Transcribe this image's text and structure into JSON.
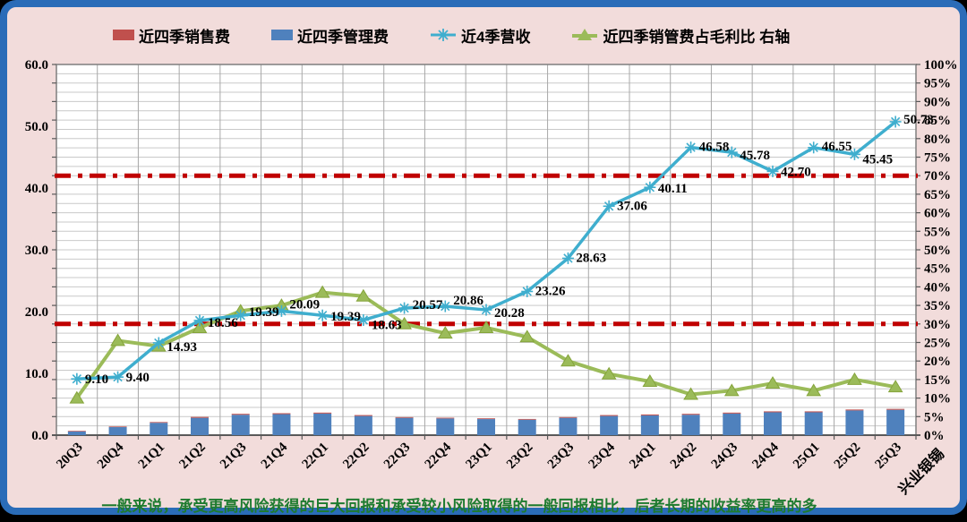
{
  "legend": {
    "items": [
      {
        "label": "近四季销售费",
        "swatch": "red-bar-swatch",
        "color": "#C0504D"
      },
      {
        "label": "近四季管理费",
        "swatch": "blue-bar-swatch",
        "color": "#4F81BD"
      },
      {
        "label": "近4季营收",
        "swatch": "cyan-line-swatch",
        "color": "#3FAECE"
      },
      {
        "label": "近四季销管费占毛利比 右轴",
        "swatch": "green-line-swatch",
        "color": "#9BBB59"
      }
    ]
  },
  "footnote": "一般来说，承受更高风险获得的巨大回报和承受较小风险取得的一般回报相比，后者长期的收益率更高的多",
  "x_axis_extra_label": "兴业银锡",
  "colors": {
    "frame_border": "#2A6CB8",
    "background": "#F2DCDB",
    "plot_background": "#FFFFFF",
    "gridline_h": "#C9C9C9",
    "gridline_v": "#A8A8A8",
    "axis_line": "#7F7F7F",
    "reference_line": "#C00000",
    "bar_sales": "#C0504D",
    "bar_mgmt": "#4F81BD",
    "line_revenue": "#3FAECE",
    "line_ratio": "#9BBB59",
    "label_text": "#000000",
    "footnote_text": "#1E7B2F"
  },
  "chart_data": {
    "type": "bar",
    "subtype": "combo-stacked-bar-two-lines",
    "categories": [
      "20Q3",
      "20Q4",
      "21Q1",
      "21Q2",
      "21Q3",
      "21Q4",
      "22Q1",
      "22Q2",
      "22Q3",
      "22Q4",
      "23Q1",
      "23Q2",
      "23Q3",
      "23Q4",
      "24Q1",
      "24Q2",
      "24Q3",
      "24Q4",
      "25Q1",
      "25Q2",
      "25Q3"
    ],
    "series": [
      {
        "name": "近四季销售费",
        "type": "bar",
        "stack": "fees",
        "axis": "left",
        "color": "#C0504D",
        "values": [
          0.1,
          0.1,
          0.12,
          0.15,
          0.15,
          0.15,
          0.15,
          0.15,
          0.12,
          0.12,
          0.12,
          0.12,
          0.12,
          0.15,
          0.15,
          0.15,
          0.15,
          0.15,
          0.15,
          0.15,
          0.15
        ]
      },
      {
        "name": "近四季管理费",
        "type": "bar",
        "stack": "fees",
        "axis": "left",
        "color": "#4F81BD",
        "values": [
          0.6,
          1.3,
          2.0,
          2.8,
          3.3,
          3.4,
          3.5,
          3.1,
          2.8,
          2.7,
          2.6,
          2.5,
          2.8,
          3.1,
          3.2,
          3.3,
          3.5,
          3.7,
          3.7,
          4.0,
          4.1
        ]
      },
      {
        "name": "近4季营收",
        "type": "line",
        "axis": "left",
        "color": "#3FAECE",
        "marker": "asterisk",
        "values": [
          9.1,
          9.4,
          14.93,
          18.56,
          19.39,
          20.09,
          19.39,
          18.63,
          20.57,
          20.86,
          20.28,
          23.26,
          28.63,
          37.06,
          40.11,
          46.58,
          45.78,
          42.7,
          46.55,
          45.45,
          50.73
        ],
        "data_labels": [
          "9.10",
          "9.40",
          "14.93",
          "18.56",
          "19.39",
          "20.09",
          "19.39",
          "18.63",
          "20.57",
          "20.86",
          "20.28",
          "23.26",
          "28.63",
          "37.06",
          "40.11",
          "46.58",
          "45.78",
          "42.70",
          "46.55",
          "45.45",
          "50.73"
        ],
        "label_dy": [
          5,
          5,
          9,
          7,
          1,
          -3,
          6,
          10,
          1,
          -2,
          8,
          4,
          4,
          4,
          6,
          4,
          8,
          5,
          3,
          10,
          2
        ]
      },
      {
        "name": "近四季销管费占毛利比 右轴",
        "type": "line",
        "axis": "right",
        "color": "#9BBB59",
        "marker": "triangle",
        "values": [
          10,
          25.5,
          24,
          29,
          33.5,
          35,
          38.5,
          37.5,
          30,
          27.5,
          29,
          26.5,
          20,
          16.5,
          14.5,
          11,
          12,
          14,
          12,
          15,
          13
        ]
      }
    ],
    "reference_lines": [
      {
        "axis": "right",
        "value": 70,
        "color": "#C00000",
        "style": "dash-dot"
      },
      {
        "axis": "right",
        "value": 30,
        "color": "#C00000",
        "style": "dash-dot"
      }
    ],
    "left_axis": {
      "min": 0,
      "max": 60,
      "step": 10,
      "tick_labels": [
        "0.0",
        "10.0",
        "20.0",
        "30.0",
        "40.0",
        "50.0",
        "60.0"
      ]
    },
    "right_axis": {
      "min": 0,
      "max": 100,
      "step": 5,
      "suffix": "%"
    },
    "grid": {
      "horizontal_step_pct": 2.5,
      "vertical": "category-boundaries",
      "on": true
    },
    "legend_position": "top",
    "title": "",
    "x_axis_extra_label": "兴业银锡"
  }
}
